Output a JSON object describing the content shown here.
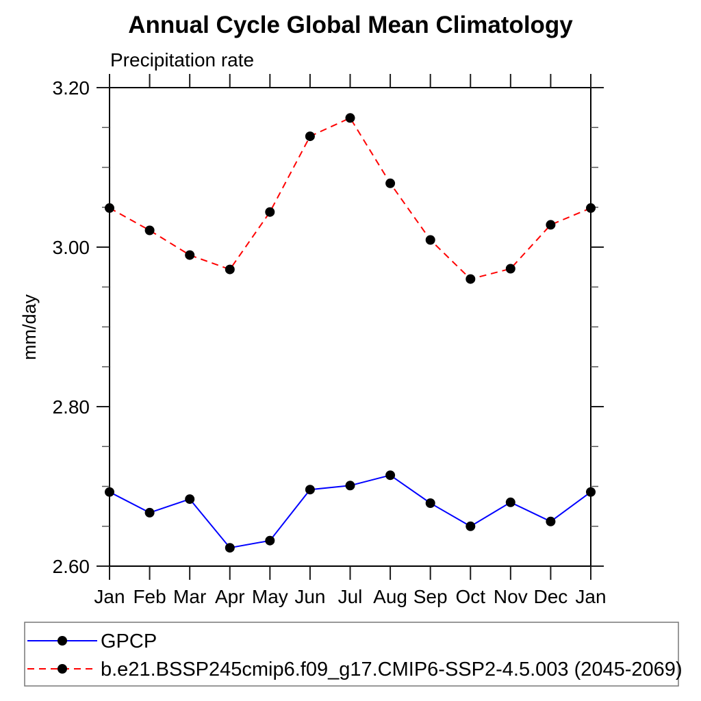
{
  "title": "Annual Cycle Global Mean Climatology",
  "subtitle": "Precipitation rate",
  "ylabel": "mm/day",
  "chart_data": {
    "type": "line",
    "categories": [
      "Jan",
      "Feb",
      "Mar",
      "Apr",
      "May",
      "Jun",
      "Jul",
      "Aug",
      "Sep",
      "Oct",
      "Nov",
      "Dec",
      "Jan"
    ],
    "series": [
      {
        "name": "GPCP",
        "color": "#0000ff",
        "style": "solid",
        "values": [
          2.693,
          2.667,
          2.684,
          2.623,
          2.632,
          2.696,
          2.701,
          2.714,
          2.679,
          2.65,
          2.68,
          2.656,
          2.693
        ]
      },
      {
        "name": "b.e21.BSSP245cmip6.f09_g17.CMIP6-SSP2-4.5.003 (2045-2069)",
        "color": "#ff0000",
        "style": "dashed",
        "values": [
          3.049,
          3.021,
          2.99,
          2.972,
          3.044,
          3.139,
          3.162,
          3.08,
          3.009,
          2.96,
          2.973,
          3.028,
          3.049
        ]
      }
    ],
    "ylim": [
      2.6,
      3.2
    ],
    "yticks": [
      3.2,
      3.0,
      2.8,
      2.6
    ],
    "ytick_labels": [
      "3.20",
      "3.00",
      "2.80",
      "2.60"
    ],
    "minor_step": 0.05,
    "marker_color": "#000000",
    "grid": "off",
    "legend_position": "bottom"
  }
}
